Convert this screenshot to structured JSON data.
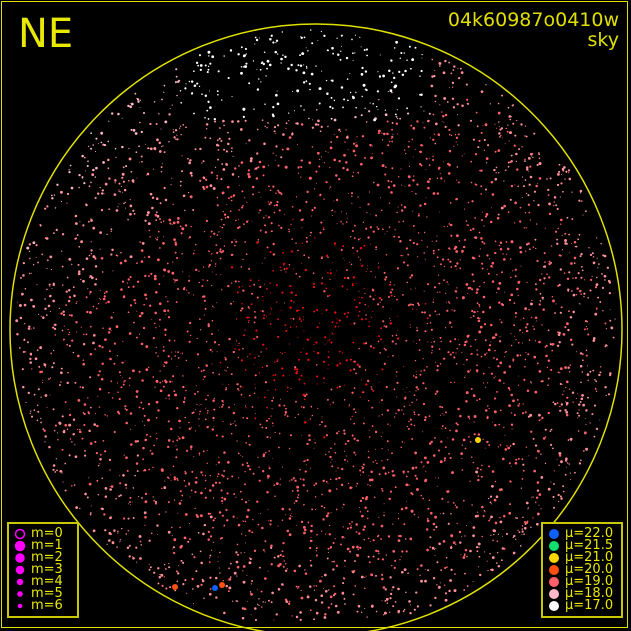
{
  "direction_label": "NE",
  "title": {
    "line1": "04k60987o0410w",
    "line2": "sky"
  },
  "colors": {
    "frame": "#e0e000",
    "horizon_circle": "#e0e000",
    "background": "#000000"
  },
  "chart_data": {
    "type": "scatter",
    "description_kind": "all-sky star map",
    "legend_magnitude": {
      "placement": "bottom-left",
      "entries": [
        "m=0",
        "m=1",
        "m=2",
        "m=3",
        "m=4",
        "m=5",
        "m=6"
      ],
      "color": "#ff00ff"
    },
    "legend_surface_brightness": {
      "placement": "bottom-right",
      "entries": [
        {
          "label": "μ=22.0",
          "value": 22.0,
          "color": "#1060ff"
        },
        {
          "label": "μ=21.5",
          "value": 21.5,
          "color": "#10e070"
        },
        {
          "label": "μ=21.0",
          "value": 21.0,
          "color": "#ffd700"
        },
        {
          "label": "μ=20.0",
          "value": 20.0,
          "color": "#ff5010"
        },
        {
          "label": "μ=19.0",
          "value": 19.0,
          "color": "#ff6068"
        },
        {
          "label": "μ=18.0",
          "value": 18.0,
          "color": "#ffb8c8"
        },
        {
          "label": "μ=17.0",
          "value": 17.0,
          "color": "#ffffff"
        }
      ]
    }
  }
}
